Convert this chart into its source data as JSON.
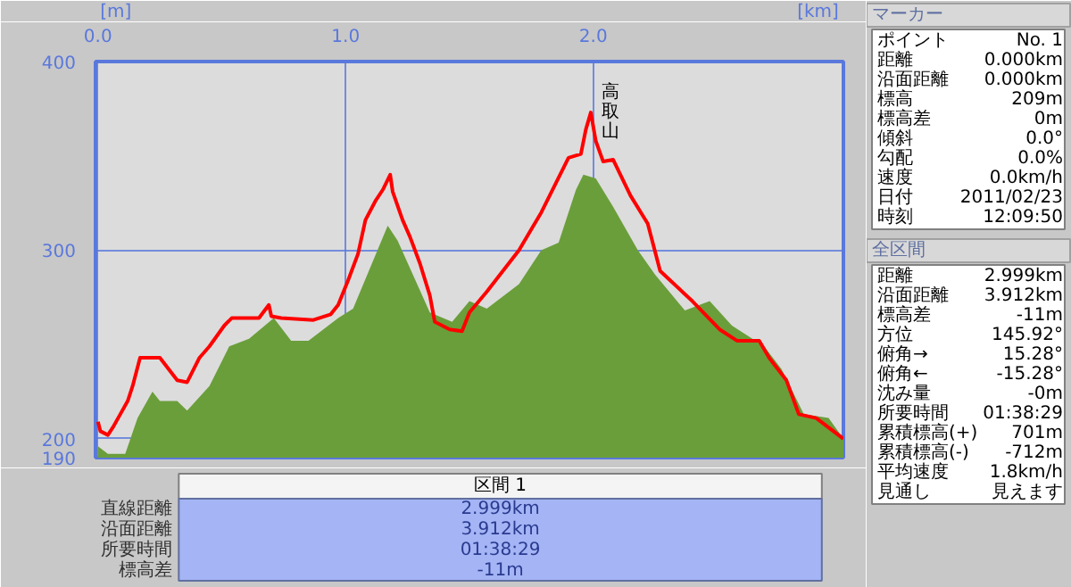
{
  "chart_data": [
    {
      "type": "area",
      "ylabel": "[m]",
      "xlabel": "[km]",
      "xlim": [
        -0.01,
        3.01
      ],
      "ylim": [
        190,
        400
      ],
      "xticks": [
        {
          "value": 0,
          "label": "0.0"
        },
        {
          "value": 1,
          "label": "1.0"
        },
        {
          "value": 2,
          "label": "2.0"
        }
      ],
      "yticks": [
        190,
        200,
        300,
        400
      ],
      "grid": true,
      "series": [
        {
          "type": "area",
          "color": "#6a9e3a",
          "x": [
            0.0,
            0.04,
            0.11,
            0.16,
            0.22,
            0.25,
            0.32,
            0.36,
            0.45,
            0.53,
            0.61,
            0.71,
            0.78,
            0.85,
            0.97,
            1.03,
            1.1,
            1.17,
            1.21,
            1.34,
            1.43,
            1.5,
            1.57,
            1.7,
            1.79,
            1.86,
            1.93,
            1.96,
            2.01,
            2.08,
            2.18,
            2.25,
            2.37,
            2.47,
            2.56,
            2.69,
            2.76,
            2.85,
            2.95,
            3.01
          ],
          "values": [
            196,
            192,
            192,
            211,
            225,
            220,
            220,
            215,
            228,
            249,
            253,
            264,
            252,
            252,
            264,
            269,
            291,
            313,
            305,
            267,
            262,
            273,
            269,
            282,
            300,
            304,
            332,
            340,
            338,
            323,
            300,
            287,
            268,
            273,
            260,
            249,
            237,
            213,
            211,
            200
          ]
        },
        {
          "type": "line",
          "color": "#ff0000",
          "x": [
            0.0,
            0.01,
            0.04,
            0.06,
            0.09,
            0.12,
            0.14,
            0.17,
            0.25,
            0.32,
            0.36,
            0.41,
            0.45,
            0.51,
            0.54,
            0.65,
            0.69,
            0.7,
            0.74,
            0.87,
            0.94,
            0.97,
            1.01,
            1.05,
            1.08,
            1.12,
            1.15,
            1.18,
            1.19,
            1.23,
            1.26,
            1.3,
            1.34,
            1.36,
            1.42,
            1.47,
            1.5,
            1.57,
            1.7,
            1.79,
            1.9,
            1.95,
            1.97,
            1.99,
            2.01,
            2.04,
            2.08,
            2.15,
            2.22,
            2.27,
            2.4,
            2.51,
            2.58,
            2.67,
            2.71,
            2.78,
            2.83,
            2.9,
            3.01
          ],
          "values": [
            209,
            204,
            202,
            206,
            213,
            220,
            228,
            243,
            243,
            231,
            230,
            243,
            249,
            260,
            264,
            264,
            271,
            265,
            264,
            263,
            266,
            271,
            284,
            298,
            316,
            326,
            332,
            340,
            331,
            316,
            307,
            293,
            276,
            262,
            258,
            257,
            267,
            278,
            300,
            320,
            349,
            351,
            364,
            373,
            358,
            347,
            348,
            329,
            314,
            289,
            273,
            258,
            252,
            252,
            243,
            231,
            213,
            211,
            200
          ]
        }
      ],
      "annotations": [
        {
          "text": "高取山",
          "x": 1.99,
          "y": 373
        }
      ]
    },
    {
      "type": "other",
      "title": "マーカー",
      "categories": [
        "ポイント",
        "距離",
        "沿面距離",
        "標高",
        "標高差",
        "傾斜",
        "勾配",
        "速度",
        "日付",
        "時刻"
      ],
      "value_labels": [
        "No. 1",
        "0.000km",
        "0.000km",
        "209m",
        "0m",
        "0.0°",
        "0.0%",
        "0.0km/h",
        "2011/02/23",
        "12:09:50"
      ]
    },
    {
      "type": "other",
      "title": "全区間",
      "categories": [
        "距離",
        "沿面距離",
        "標高差",
        "方位",
        "俯角→",
        "俯角←",
        "沈み量",
        "所要時間",
        "累積標高(+)",
        "累積標高(-)",
        "平均速度",
        "見通し"
      ],
      "value_labels": [
        "2.999km",
        "3.912km",
        "-11m",
        "145.92°",
        "15.28°",
        "-15.28°",
        "-0m",
        "01:38:29",
        "701m",
        "-712m",
        "1.8km/h",
        "見えます"
      ]
    },
    {
      "type": "other",
      "title": "区間 1",
      "categories": [
        "直線距離",
        "沿面距離",
        "所要時間",
        "標高差"
      ],
      "value_labels": [
        "2.999km",
        "3.912km",
        "01:38:29",
        "-11m"
      ]
    }
  ]
}
